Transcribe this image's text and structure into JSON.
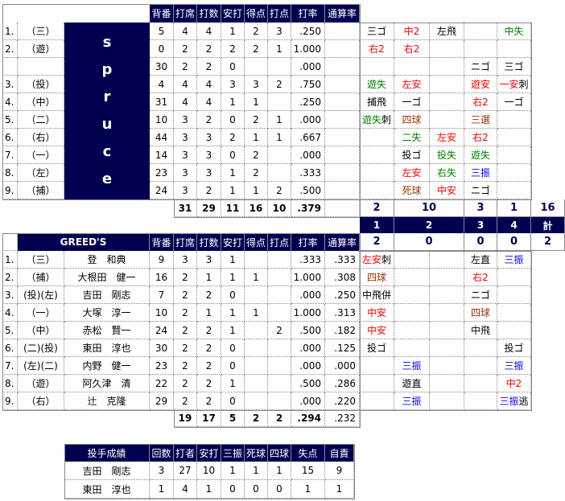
{
  "colors": {
    "navy": "#000050",
    "hit": "#ff0000",
    "error": "#008000",
    "strikeout": "#0000ff",
    "walk": "#993300"
  },
  "headers": [
    "背番",
    "打席",
    "打数",
    "安打",
    "得点",
    "打点",
    "打率",
    "通算率"
  ],
  "innings_header": [
    "1",
    "2",
    "3",
    "4",
    "計"
  ],
  "top": {
    "team": "spruce",
    "rows": [
      {
        "no": "1.",
        "pos": "（三）",
        "stats": [
          "5",
          "4",
          "4",
          "1",
          "2",
          "3",
          ".250",
          ""
        ],
        "inn": [
          [
            [
              "三ゴ",
              "o"
            ]
          ],
          [
            [
              "中2",
              "h"
            ]
          ],
          [
            [
              "左飛",
              "o"
            ]
          ],
          [],
          [
            [
              "中失",
              "e"
            ]
          ]
        ]
      },
      {
        "no": "2.",
        "pos": "（遊）",
        "stats": [
          "0",
          "2",
          "2",
          "2",
          "2",
          "1",
          "1.000",
          ""
        ],
        "inn": [
          [
            [
              "右2",
              "h"
            ]
          ],
          [
            [
              "右2",
              "h"
            ]
          ],
          [],
          [],
          []
        ]
      },
      {
        "no": "",
        "pos": "",
        "stats": [
          "30",
          "2",
          "2",
          "0",
          "",
          "",
          ".000",
          ""
        ],
        "inn": [
          [],
          [],
          [],
          [
            [
              "ニゴ",
              "o"
            ]
          ],
          [
            [
              "三ゴ",
              "o"
            ]
          ]
        ]
      },
      {
        "no": "3.",
        "pos": "（投）",
        "stats": [
          "4",
          "4",
          "4",
          "3",
          "3",
          "2",
          ".750",
          ""
        ],
        "inn": [
          [
            [
              "遊失",
              "e"
            ]
          ],
          [
            [
              "左安",
              "h"
            ]
          ],
          [],
          [
            [
              "遊安",
              "h"
            ]
          ],
          [
            [
              "一安",
              "h"
            ],
            [
              "刺",
              "o"
            ]
          ]
        ]
      },
      {
        "no": "4.",
        "pos": "（中）",
        "stats": [
          "31",
          "4",
          "4",
          "1",
          "1",
          "",
          ".250",
          ""
        ],
        "inn": [
          [
            [
              "捕飛",
              "o"
            ]
          ],
          [
            [
              "一ゴ",
              "o"
            ]
          ],
          [],
          [
            [
              "右2",
              "h"
            ]
          ],
          [
            [
              "一ゴ",
              "o"
            ]
          ]
        ]
      },
      {
        "no": "5.",
        "pos": "（二）",
        "stats": [
          "10",
          "3",
          "2",
          "0",
          "2",
          "1",
          ".000",
          ""
        ],
        "inn": [
          [
            [
              "遊失",
              "e"
            ],
            [
              "刺",
              "o"
            ]
          ],
          [
            [
              "四球",
              "w"
            ]
          ],
          [],
          [
            [
              "三選",
              "w"
            ]
          ],
          []
        ]
      },
      {
        "no": "6.",
        "pos": "（右）",
        "stats": [
          "44",
          "3",
          "3",
          "2",
          "1",
          "1",
          ".667",
          ""
        ],
        "inn": [
          [],
          [
            [
              "二失",
              "e"
            ]
          ],
          [
            [
              "左安",
              "h"
            ]
          ],
          [
            [
              "右2",
              "h"
            ]
          ],
          []
        ]
      },
      {
        "no": "7.",
        "pos": "（一）",
        "stats": [
          "14",
          "3",
          "3",
          "0",
          "2",
          "",
          ".000",
          ""
        ],
        "inn": [
          [],
          [
            [
              "投ゴ",
              "o"
            ]
          ],
          [
            [
              "投失",
              "e"
            ]
          ],
          [
            [
              "遊失",
              "e"
            ]
          ],
          []
        ]
      },
      {
        "no": "8.",
        "pos": "（左）",
        "stats": [
          "23",
          "3",
          "3",
          "1",
          "2",
          "",
          ".333",
          ""
        ],
        "inn": [
          [],
          [
            [
              "左安",
              "h"
            ]
          ],
          [
            [
              "右失",
              "e"
            ]
          ],
          [
            [
              "三振",
              "k"
            ]
          ],
          []
        ]
      },
      {
        "no": "9.",
        "pos": "（捕）",
        "stats": [
          "24",
          "3",
          "2",
          "1",
          "1",
          "2",
          ".500",
          ""
        ],
        "inn": [
          [],
          [
            [
              "死球",
              "w"
            ]
          ],
          [
            [
              "中安",
              "h"
            ]
          ],
          [
            [
              "ニゴ",
              "o"
            ]
          ],
          []
        ]
      }
    ],
    "totals": [
      "31",
      "29",
      "11",
      "16",
      "10",
      ".379",
      ""
    ],
    "scores": [
      "2",
      "10",
      "3",
      "1",
      "16"
    ]
  },
  "bottom": {
    "team": "GREED'S",
    "rows": [
      {
        "no": "1.",
        "pos": "（三）",
        "name": "登　和典",
        "stats": [
          "9",
          "3",
          "3",
          "1",
          "",
          "",
          ".333",
          ".333"
        ],
        "inn": [
          [
            [
              "左安",
              "h"
            ],
            [
              "刺",
              "o"
            ]
          ],
          [],
          [],
          [
            [
              "左直",
              "o"
            ]
          ],
          [
            [
              "三振",
              "k"
            ]
          ]
        ]
      },
      {
        "no": "2.",
        "pos": "（捕）",
        "name": "大根田　健一",
        "stats": [
          "16",
          "2",
          "1",
          "1",
          "1",
          "",
          "1.000",
          ".308"
        ],
        "inn": [
          [
            [
              "四球",
              "w"
            ]
          ],
          [],
          [],
          [
            [
              "右2",
              "h"
            ]
          ],
          []
        ]
      },
      {
        "no": "3.",
        "pos": "(投)(左)",
        "name": "吉田　剛志",
        "stats": [
          "7",
          "2",
          "2",
          "0",
          "",
          "",
          ".000",
          ".250"
        ],
        "inn": [
          [
            [
              "中飛併",
              "o"
            ]
          ],
          [],
          [],
          [
            [
              "ニゴ",
              "o"
            ]
          ],
          []
        ]
      },
      {
        "no": "4.",
        "pos": "（一）",
        "name": "大塚　淳一",
        "stats": [
          "10",
          "2",
          "1",
          "1",
          "1",
          "",
          "1.000",
          ".313"
        ],
        "inn": [
          [
            [
              "中安",
              "h"
            ]
          ],
          [],
          [],
          [
            [
              "四球",
              "w"
            ]
          ],
          []
        ]
      },
      {
        "no": "5.",
        "pos": "（中）",
        "name": "赤松　賢一",
        "stats": [
          "24",
          "2",
          "2",
          "1",
          "",
          "2",
          ".500",
          ".182"
        ],
        "inn": [
          [
            [
              "中安",
              "h"
            ]
          ],
          [],
          [],
          [
            [
              "中飛",
              "o"
            ]
          ],
          []
        ]
      },
      {
        "no": "6.",
        "pos": "(二)(投)",
        "name": "東田　淳也",
        "stats": [
          "30",
          "2",
          "2",
          "0",
          "",
          "",
          ".000",
          ".125"
        ],
        "inn": [
          [
            [
              "投ゴ",
              "o"
            ]
          ],
          [],
          [],
          [],
          [
            [
              "投ゴ",
              "o"
            ]
          ]
        ]
      },
      {
        "no": "7.",
        "pos": "(左)(二)",
        "name": "内野　健一",
        "stats": [
          "23",
          "2",
          "2",
          "0",
          "",
          "",
          ".000",
          ".000"
        ],
        "inn": [
          [],
          [
            [
              "三振",
              "k"
            ]
          ],
          [],
          [],
          [
            [
              "三振",
              "k"
            ]
          ]
        ]
      },
      {
        "no": "8.",
        "pos": "（遊）",
        "name": "阿久津　清",
        "stats": [
          "22",
          "2",
          "2",
          "1",
          "",
          "",
          ".500",
          ".286"
        ],
        "inn": [
          [],
          [
            [
              "遊直",
              "o"
            ]
          ],
          [],
          [],
          [
            [
              "中2",
              "h"
            ]
          ]
        ]
      },
      {
        "no": "9.",
        "pos": "（右）",
        "name": "辻　克隆",
        "stats": [
          "29",
          "2",
          "2",
          "0",
          "",
          "",
          ".000",
          ".220"
        ],
        "inn": [
          [],
          [
            [
              "三振",
              "k"
            ]
          ],
          [],
          [],
          [
            [
              "三振",
              "k"
            ],
            [
              "逃",
              "o"
            ]
          ]
        ]
      }
    ],
    "totals": [
      "19",
      "17",
      "5",
      "2",
      "2",
      ".294",
      ".232"
    ],
    "scores": [
      "2",
      "0",
      "0",
      "0",
      "2"
    ]
  },
  "pitching": {
    "headers": [
      "投手成績",
      "回数",
      "打者",
      "安打",
      "三振",
      "死球",
      "四球",
      "失点",
      "自責"
    ],
    "rows": [
      [
        "吉田　剛志",
        "3",
        "27",
        "10",
        "1",
        "1",
        "1",
        "15",
        "9"
      ],
      [
        "東田　淳也",
        "1",
        "4",
        "1",
        "0",
        "0",
        "0",
        "1",
        "1"
      ]
    ]
  }
}
